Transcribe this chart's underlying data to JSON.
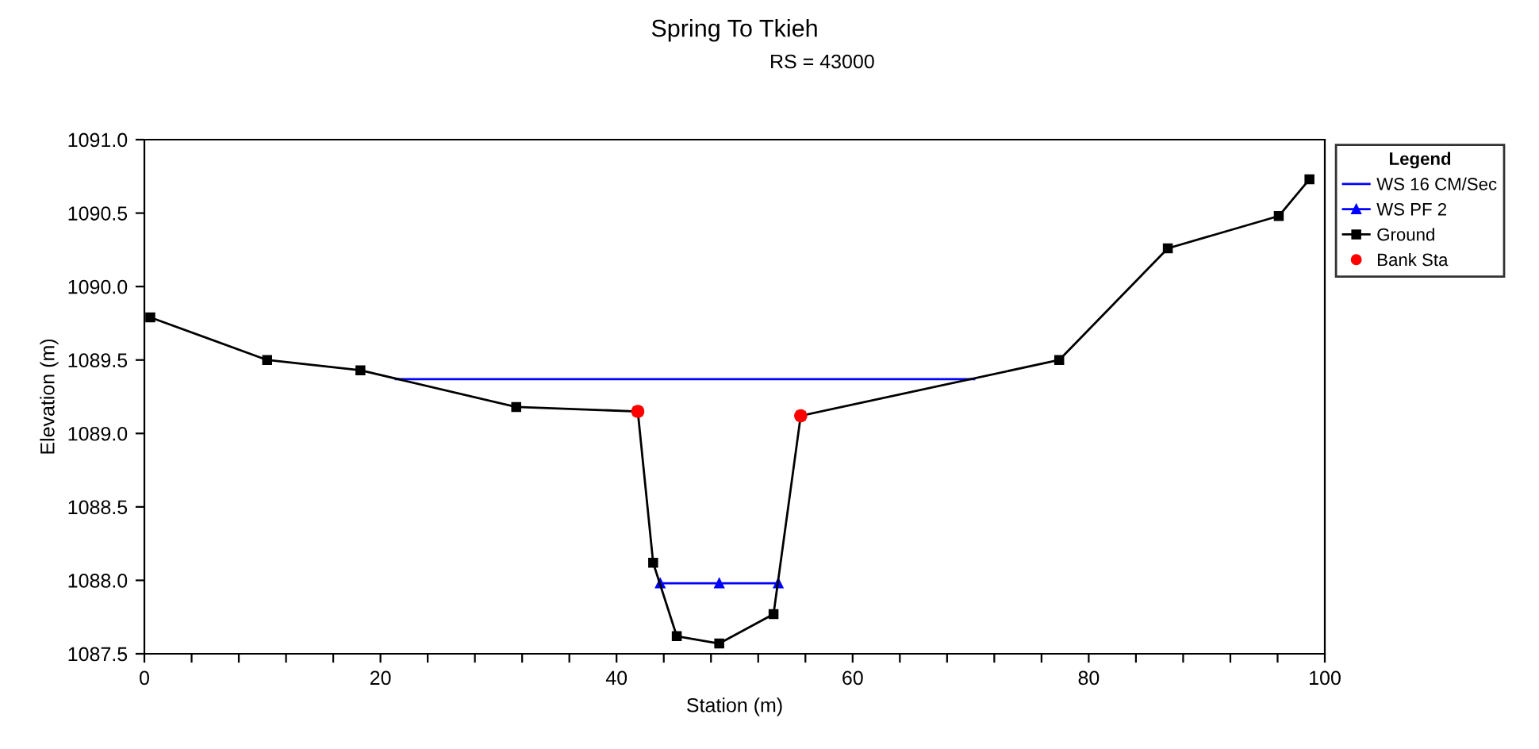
{
  "chart_data": {
    "type": "line",
    "title": "Spring To Tkieh",
    "subtitle": "RS = 43000",
    "xlabel": "Station (m)",
    "ylabel": "Elevation (m)",
    "legend_title": "Legend",
    "series": [
      {
        "name": "WS 16 CM/Sec",
        "color": "#0000ff",
        "marker": "none",
        "x": [
          21.3,
          70.3
        ],
        "values": [
          1089.37,
          1089.37
        ]
      },
      {
        "name": "WS PF 2",
        "color": "#0000ff",
        "marker": "triangle",
        "x": [
          43.7,
          48.7,
          53.7
        ],
        "values": [
          1087.98,
          1087.98,
          1087.98
        ]
      },
      {
        "name": "Ground",
        "color": "#000000",
        "marker": "square",
        "x": [
          0.5,
          10.4,
          18.3,
          31.5,
          41.8,
          43.1,
          45.1,
          48.7,
          53.3,
          55.6,
          77.5,
          86.7,
          96.1,
          98.7
        ],
        "values": [
          1089.79,
          1089.5,
          1089.43,
          1089.18,
          1089.15,
          1088.12,
          1087.62,
          1087.57,
          1087.77,
          1089.12,
          1089.5,
          1090.26,
          1090.48,
          1090.73
        ]
      },
      {
        "name": "Bank Sta",
        "type": "scatter",
        "color": "#ff0000",
        "marker": "circle",
        "x": [
          41.8,
          55.6
        ],
        "values": [
          1089.15,
          1089.12
        ]
      }
    ],
    "xlim": [
      0,
      100
    ],
    "ylim": [
      1087.5,
      1091.0
    ],
    "xticks": [
      0,
      {
        "value": 4,
        "label": null
      },
      {
        "value": 8,
        "label": null
      },
      {
        "value": 12,
        "label": null
      },
      {
        "value": 16,
        "label": null
      },
      20,
      {
        "value": 24,
        "label": null
      },
      {
        "value": 28,
        "label": null
      },
      {
        "value": 32,
        "label": null
      },
      {
        "value": 36,
        "label": null
      },
      40,
      {
        "value": 44,
        "label": null
      },
      {
        "value": 48,
        "label": null
      },
      {
        "value": 52,
        "label": null
      },
      {
        "value": 56,
        "label": null
      },
      60,
      {
        "value": 64,
        "label": null
      },
      {
        "value": 68,
        "label": null
      },
      {
        "value": 72,
        "label": null
      },
      {
        "value": 76,
        "label": null
      },
      80,
      {
        "value": 84,
        "label": null
      },
      {
        "value": 88,
        "label": null
      },
      {
        "value": 92,
        "label": null
      },
      {
        "value": 96,
        "label": null
      },
      100
    ],
    "yticks": [
      {
        "value": 1087.5,
        "label": "1087.5"
      },
      {
        "value": 1088.0,
        "label": "1088.0"
      },
      {
        "value": 1088.5,
        "label": "1088.5"
      },
      {
        "value": 1089.0,
        "label": "1089.0"
      },
      {
        "value": 1089.5,
        "label": "1089.5"
      },
      {
        "value": 1090.0,
        "label": "1090.0"
      },
      {
        "value": 1090.5,
        "label": "1090.5"
      },
      {
        "value": 1091.0,
        "label": "1091.0"
      }
    ],
    "grid": false,
    "legend": "right"
  }
}
